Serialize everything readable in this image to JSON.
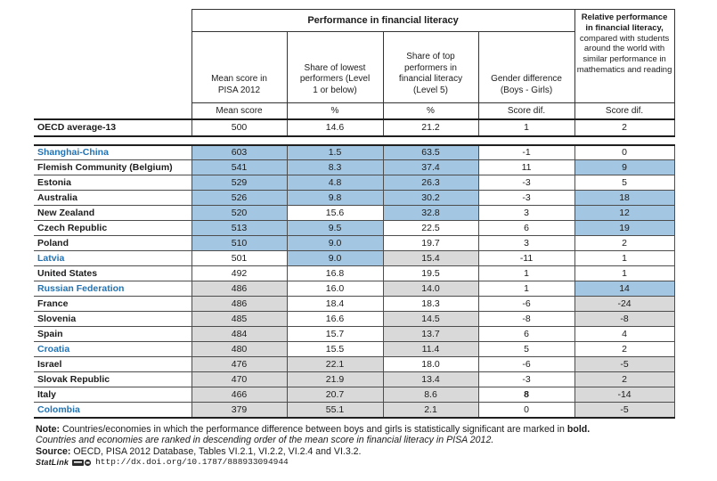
{
  "colors": {
    "highlight_blue": "#A3C6E2",
    "highlight_gray": "#D9D9D9",
    "country_link_blue": "#2173B3"
  },
  "table": {
    "group_header": "Performance in financial literacy",
    "relative_header": {
      "bold_part": "Relative performance in financial literacy,",
      "normal_part": "compared with students around the world with similar performance in mathematics and reading",
      "sub": "Score dif."
    },
    "columns": [
      {
        "label": "Mean score in PISA 2012",
        "sub": "Mean score"
      },
      {
        "label": "Share of lowest performers (Level 1 or below)",
        "sub": "%"
      },
      {
        "label": "Share of top performers in financial literacy (Level 5)",
        "sub": "%"
      },
      {
        "label": "Gender difference (Boys - Girls)",
        "sub": "Score dif."
      }
    ],
    "oecd_row": {
      "name": "OECD average-13",
      "values": [
        "500",
        "14.6",
        "21.2",
        "1",
        "2"
      ]
    },
    "rows": [
      {
        "name": "Shanghai-China",
        "partner": true,
        "values": [
          "603",
          "1.5",
          "63.5",
          "-1",
          "0"
        ],
        "bg": [
          "b",
          "b",
          "b",
          "w",
          "w"
        ]
      },
      {
        "name": "Flemish Community (Belgium)",
        "partner": false,
        "values": [
          "541",
          "8.3",
          "37.4",
          "11",
          "9"
        ],
        "bg": [
          "b",
          "b",
          "b",
          "w",
          "b"
        ]
      },
      {
        "name": "Estonia",
        "partner": false,
        "values": [
          "529",
          "4.8",
          "26.3",
          "-3",
          "5"
        ],
        "bg": [
          "b",
          "b",
          "b",
          "w",
          "w"
        ]
      },
      {
        "name": "Australia",
        "partner": false,
        "values": [
          "526",
          "9.8",
          "30.2",
          "-3",
          "18"
        ],
        "bg": [
          "b",
          "b",
          "b",
          "w",
          "b"
        ]
      },
      {
        "name": "New Zealand",
        "partner": false,
        "values": [
          "520",
          "15.6",
          "32.8",
          "3",
          "12"
        ],
        "bg": [
          "b",
          "w",
          "b",
          "w",
          "b"
        ]
      },
      {
        "name": "Czech Republic",
        "partner": false,
        "values": [
          "513",
          "9.5",
          "22.5",
          "6",
          "19"
        ],
        "bg": [
          "b",
          "b",
          "w",
          "w",
          "b"
        ]
      },
      {
        "name": "Poland",
        "partner": false,
        "values": [
          "510",
          "9.0",
          "19.7",
          "3",
          "2"
        ],
        "bg": [
          "b",
          "b",
          "w",
          "w",
          "w"
        ]
      },
      {
        "name": "Latvia",
        "partner": true,
        "values": [
          "501",
          "9.0",
          "15.4",
          "-11",
          "1"
        ],
        "bg": [
          "w",
          "b",
          "g",
          "w",
          "w"
        ]
      },
      {
        "name": "United States",
        "partner": false,
        "values": [
          "492",
          "16.8",
          "19.5",
          "1",
          "1"
        ],
        "bg": [
          "w",
          "w",
          "w",
          "w",
          "w"
        ]
      },
      {
        "name": "Russian Federation",
        "partner": true,
        "values": [
          "486",
          "16.0",
          "14.0",
          "1",
          "14"
        ],
        "bg": [
          "g",
          "w",
          "g",
          "w",
          "b"
        ]
      },
      {
        "name": "France",
        "partner": false,
        "values": [
          "486",
          "18.4",
          "18.3",
          "-6",
          "-24"
        ],
        "bg": [
          "g",
          "w",
          "w",
          "w",
          "g"
        ]
      },
      {
        "name": "Slovenia",
        "partner": false,
        "values": [
          "485",
          "16.6",
          "14.5",
          "-8",
          "-8"
        ],
        "bg": [
          "g",
          "w",
          "g",
          "w",
          "g"
        ]
      },
      {
        "name": "Spain",
        "partner": false,
        "values": [
          "484",
          "15.7",
          "13.7",
          "6",
          "4"
        ],
        "bg": [
          "g",
          "w",
          "g",
          "w",
          "w"
        ]
      },
      {
        "name": "Croatia",
        "partner": true,
        "values": [
          "480",
          "15.5",
          "11.4",
          "5",
          "2"
        ],
        "bg": [
          "g",
          "w",
          "g",
          "w",
          "w"
        ]
      },
      {
        "name": "Israel",
        "partner": false,
        "values": [
          "476",
          "22.1",
          "18.0",
          "-6",
          "-5"
        ],
        "bg": [
          "g",
          "g",
          "w",
          "w",
          "g"
        ]
      },
      {
        "name": "Slovak Republic",
        "partner": false,
        "values": [
          "470",
          "21.9",
          "13.4",
          "-3",
          "2"
        ],
        "bg": [
          "g",
          "g",
          "g",
          "w",
          "g"
        ]
      },
      {
        "name": "Italy",
        "partner": false,
        "values": [
          "466",
          "20.7",
          "8.6",
          "8",
          "-14"
        ],
        "bg": [
          "g",
          "g",
          "g",
          "w",
          "g"
        ],
        "bold_indices": [
          3
        ]
      },
      {
        "name": "Colombia",
        "partner": true,
        "values": [
          "379",
          "55.1",
          "2.1",
          "0",
          "-5"
        ],
        "bg": [
          "g",
          "g",
          "g",
          "w",
          "g"
        ]
      }
    ]
  },
  "notes": {
    "note_label": "Note:",
    "note_text": " Countries/economies in which the performance difference between boys and girls is statistically significant are marked in ",
    "note_bold_end": "bold.",
    "ranking_note": "Countries and economies are ranked in descending order of the mean score in financial literacy in PISA 2012.",
    "source_label": "Source:",
    "source_text": " OECD, PISA 2012 Database, Tables VI.2.1, VI.2.2, VI.2.4 and VI.3.2.",
    "statlink_label": "StatLink",
    "statlink_url": "http://dx.doi.org/10.1787/888933094944"
  }
}
